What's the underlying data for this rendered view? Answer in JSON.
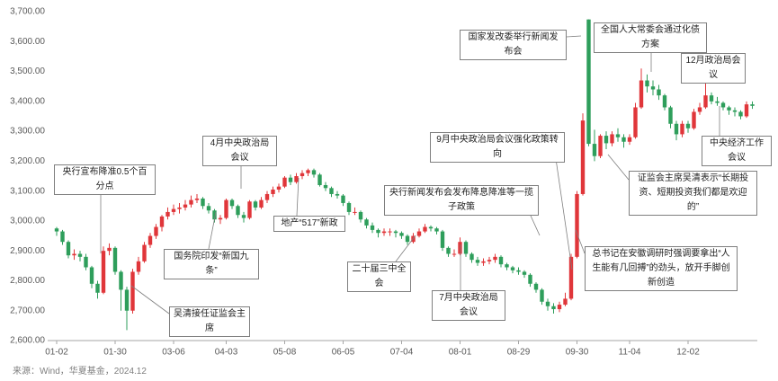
{
  "chart_data": {
    "type": "candlestick",
    "source": "来源：Wind，华夏基金，2024.12",
    "up_color": "#e0363a",
    "down_color": "#2e9e5b",
    "ylim": [
      2600,
      3700
    ],
    "yticks": [
      {
        "value": 2600,
        "label": "2,600.00"
      },
      {
        "value": 2700,
        "label": "2,700.00"
      },
      {
        "value": 2800,
        "label": "2,800.00"
      },
      {
        "value": 2900,
        "label": "2,900.00"
      },
      {
        "value": 3000,
        "label": "3,000.00"
      },
      {
        "value": 3100,
        "label": "3,100.00"
      },
      {
        "value": 3200,
        "label": "3,200.00"
      },
      {
        "value": 3300,
        "label": "3,300.00"
      },
      {
        "value": 3400,
        "label": "3,400.00"
      },
      {
        "value": 3500,
        "label": "3,500.00"
      },
      {
        "value": 3600,
        "label": "3,600.00"
      },
      {
        "value": 3700,
        "label": "3,700.00"
      }
    ],
    "categories": [
      "01-02",
      null,
      null,
      null,
      null,
      null,
      null,
      null,
      null,
      null,
      "01-30",
      null,
      null,
      null,
      null,
      null,
      null,
      null,
      null,
      null,
      "03-06",
      null,
      null,
      null,
      null,
      null,
      null,
      null,
      null,
      "04-03",
      null,
      null,
      null,
      null,
      null,
      null,
      null,
      null,
      null,
      "05-08",
      null,
      null,
      null,
      null,
      null,
      null,
      null,
      null,
      null,
      "06-05",
      null,
      null,
      null,
      null,
      null,
      null,
      null,
      null,
      null,
      "07-04",
      null,
      null,
      null,
      null,
      null,
      null,
      null,
      null,
      null,
      "08-01",
      null,
      null,
      null,
      null,
      null,
      null,
      null,
      null,
      null,
      "08-29",
      null,
      null,
      null,
      null,
      null,
      null,
      null,
      null,
      null,
      "09-30",
      null,
      null,
      null,
      null,
      null,
      null,
      null,
      null,
      "11-04",
      null,
      null,
      null,
      null,
      null,
      null,
      null,
      null,
      null,
      "12-02",
      null,
      null,
      null,
      null,
      null,
      null,
      null,
      null,
      null,
      null,
      null
    ],
    "ohlc": [
      [
        2975,
        2980,
        2950,
        2965
      ],
      [
        2965,
        2970,
        2920,
        2930
      ],
      [
        2930,
        2935,
        2875,
        2885
      ],
      [
        2885,
        2905,
        2870,
        2890
      ],
      [
        2890,
        2900,
        2865,
        2880
      ],
      [
        2880,
        2890,
        2835,
        2845
      ],
      [
        2845,
        2850,
        2775,
        2790
      ],
      [
        2790,
        2800,
        2740,
        2760
      ],
      [
        2760,
        2915,
        2755,
        2900
      ],
      [
        2900,
        2925,
        2885,
        2910
      ],
      [
        2910,
        2915,
        2820,
        2830
      ],
      [
        2830,
        2835,
        2700,
        2770
      ],
      [
        2770,
        2780,
        2635,
        2700
      ],
      [
        2700,
        2840,
        2690,
        2830
      ],
      [
        2830,
        2880,
        2820,
        2865
      ],
      [
        2865,
        2930,
        2860,
        2920
      ],
      [
        2920,
        2960,
        2910,
        2950
      ],
      [
        2950,
        2990,
        2940,
        2980
      ],
      [
        2980,
        3020,
        2965,
        3015
      ],
      [
        3015,
        3045,
        3005,
        3030
      ],
      [
        3030,
        3055,
        3020,
        3040
      ],
      [
        3040,
        3060,
        3025,
        3045
      ],
      [
        3045,
        3070,
        3035,
        3055
      ],
      [
        3055,
        3085,
        3045,
        3070
      ],
      [
        3070,
        3090,
        3060,
        3075
      ],
      [
        3075,
        3080,
        3040,
        3050
      ],
      [
        3050,
        3060,
        3025,
        3035
      ],
      [
        3035,
        3040,
        2995,
        3005
      ],
      [
        3005,
        3020,
        2990,
        3010
      ],
      [
        3010,
        3075,
        3005,
        3070
      ],
      [
        3070,
        3075,
        3040,
        3050
      ],
      [
        3050,
        3055,
        3010,
        3020
      ],
      [
        3020,
        3030,
        2995,
        3010
      ],
      [
        3010,
        3070,
        3005,
        3065
      ],
      [
        3065,
        3070,
        3035,
        3045
      ],
      [
        3045,
        3080,
        3040,
        3070
      ],
      [
        3070,
        3100,
        3060,
        3090
      ],
      [
        3090,
        3115,
        3080,
        3105
      ],
      [
        3105,
        3125,
        3095,
        3115
      ],
      [
        3115,
        3150,
        3110,
        3145
      ],
      [
        3145,
        3155,
        3120,
        3130
      ],
      [
        3130,
        3160,
        3125,
        3150
      ],
      [
        3150,
        3170,
        3140,
        3160
      ],
      [
        3160,
        3175,
        3150,
        3170
      ],
      [
        3170,
        3175,
        3145,
        3155
      ],
      [
        3155,
        3160,
        3115,
        3120
      ],
      [
        3120,
        3130,
        3100,
        3110
      ],
      [
        3110,
        3115,
        3080,
        3090
      ],
      [
        3090,
        3100,
        3075,
        3085
      ],
      [
        3085,
        3090,
        3050,
        3060
      ],
      [
        3060,
        3065,
        3020,
        3030
      ],
      [
        3030,
        3045,
        3020,
        3030
      ],
      [
        3030,
        3035,
        2995,
        3005
      ],
      [
        3005,
        3010,
        2975,
        2985
      ],
      [
        2985,
        2995,
        2960,
        2970
      ],
      [
        2970,
        2975,
        2945,
        2960
      ],
      [
        2960,
        2975,
        2950,
        2965
      ],
      [
        2965,
        2975,
        2950,
        2965
      ],
      [
        2965,
        2970,
        2945,
        2960
      ],
      [
        2960,
        2965,
        2940,
        2950
      ],
      [
        2950,
        2955,
        2920,
        2930
      ],
      [
        2930,
        2960,
        2925,
        2950
      ],
      [
        2950,
        2975,
        2945,
        2965
      ],
      [
        2965,
        2990,
        2960,
        2980
      ],
      [
        2980,
        2985,
        2965,
        2975
      ],
      [
        2975,
        2980,
        2955,
        2965
      ],
      [
        2965,
        2970,
        2900,
        2910
      ],
      [
        2910,
        2915,
        2880,
        2890
      ],
      [
        2890,
        2905,
        2880,
        2890
      ],
      [
        2890,
        2945,
        2885,
        2930
      ],
      [
        2930,
        2935,
        2880,
        2890
      ],
      [
        2890,
        2895,
        2860,
        2870
      ],
      [
        2870,
        2880,
        2850,
        2860
      ],
      [
        2860,
        2875,
        2850,
        2865
      ],
      [
        2865,
        2880,
        2855,
        2870
      ],
      [
        2870,
        2890,
        2860,
        2880
      ],
      [
        2880,
        2885,
        2845,
        2855
      ],
      [
        2855,
        2860,
        2835,
        2845
      ],
      [
        2845,
        2850,
        2825,
        2835
      ],
      [
        2835,
        2845,
        2820,
        2830
      ],
      [
        2830,
        2835,
        2810,
        2820
      ],
      [
        2820,
        2825,
        2780,
        2790
      ],
      [
        2790,
        2795,
        2760,
        2770
      ],
      [
        2770,
        2775,
        2720,
        2730
      ],
      [
        2730,
        2740,
        2700,
        2715
      ],
      [
        2715,
        2725,
        2690,
        2705
      ],
      [
        2705,
        2730,
        2695,
        2720
      ],
      [
        2720,
        2760,
        2715,
        2740
      ],
      [
        2740,
        2890,
        2735,
        2880
      ],
      [
        2880,
        3100,
        2875,
        3090
      ],
      [
        3090,
        3360,
        3085,
        3336
      ],
      [
        3674,
        3674,
        3250,
        3258
      ],
      [
        3258,
        3305,
        3200,
        3217
      ],
      [
        3217,
        3290,
        3210,
        3285
      ],
      [
        3285,
        3300,
        3240,
        3260
      ],
      [
        3260,
        3300,
        3250,
        3290
      ],
      [
        3290,
        3310,
        3265,
        3280
      ],
      [
        3280,
        3290,
        3245,
        3265
      ],
      [
        3265,
        3290,
        3255,
        3280
      ],
      [
        3280,
        3395,
        3275,
        3380
      ],
      [
        3380,
        3510,
        3375,
        3470
      ],
      [
        3470,
        3490,
        3430,
        3450
      ],
      [
        3450,
        3470,
        3420,
        3440
      ],
      [
        3440,
        3455,
        3405,
        3420
      ],
      [
        3420,
        3425,
        3370,
        3380
      ],
      [
        3380,
        3385,
        3310,
        3325
      ],
      [
        3325,
        3335,
        3270,
        3290
      ],
      [
        3290,
        3335,
        3280,
        3325
      ],
      [
        3325,
        3335,
        3295,
        3310
      ],
      [
        3310,
        3375,
        3305,
        3365
      ],
      [
        3365,
        3395,
        3355,
        3380
      ],
      [
        3380,
        3495,
        3375,
        3420
      ],
      [
        3420,
        3430,
        3390,
        3400
      ],
      [
        3400,
        3415,
        3385,
        3395
      ],
      [
        3395,
        3400,
        3370,
        3380
      ],
      [
        3380,
        3385,
        3355,
        3370
      ],
      [
        3370,
        3380,
        3350,
        3365
      ],
      [
        3365,
        3370,
        3340,
        3350
      ],
      [
        3350,
        3400,
        3345,
        3390
      ],
      [
        3390,
        3400,
        3375,
        3385
      ]
    ],
    "annotations": [
      "央行宣布降准0.5个百分点",
      "吴清接任证监会主席",
      "国务院印发“新国九条”",
      "4月中央政治局会议",
      "地产“517”新政",
      "二十届三中全会",
      "央行新闻发布会发布降息降准等一揽子政策",
      "7月中央政治局会议",
      "9月中央政治局会议强化政策转向",
      "国家发改委举行新闻发布会",
      "全国人大常委会通过化债方案",
      "12月政治局会议",
      "中央经济工作会议",
      "证监会主席吴清表示“长期投资、短期投资我们都是欢迎的”",
      "总书记在安徽调研时强调要拿出“人生能有几回搏”的劲头，放开手脚创新创造"
    ]
  }
}
